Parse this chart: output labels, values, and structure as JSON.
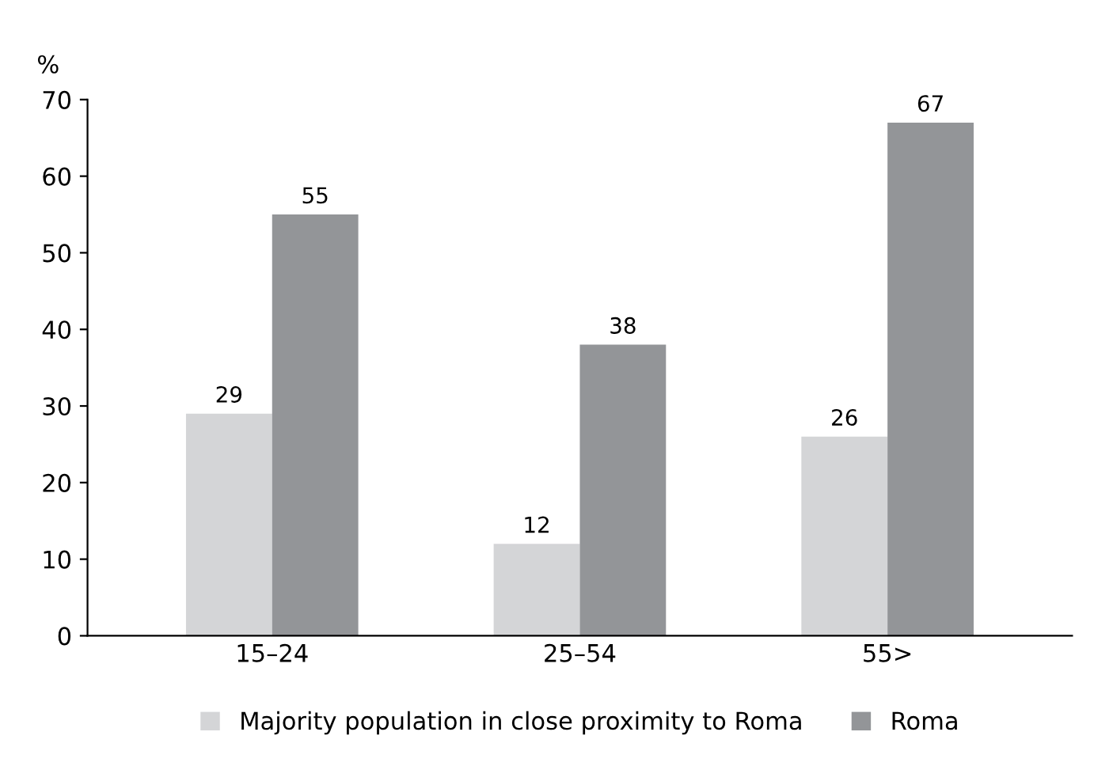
{
  "chart_data": {
    "type": "bar",
    "ylabel": "%",
    "categories": [
      "15–24",
      "25–54",
      "55>"
    ],
    "series": [
      {
        "name": "Majority population in close proximity to Roma",
        "color": "#d4d5d7",
        "values": [
          29,
          12,
          26
        ]
      },
      {
        "name": "Roma",
        "color": "#939598",
        "values": [
          55,
          38,
          67
        ]
      }
    ],
    "ylim": [
      0,
      70
    ],
    "yticks": [
      0,
      10,
      20,
      30,
      40,
      50,
      60,
      70
    ],
    "data_labels": true,
    "legend": "bottom",
    "grid": false
  }
}
